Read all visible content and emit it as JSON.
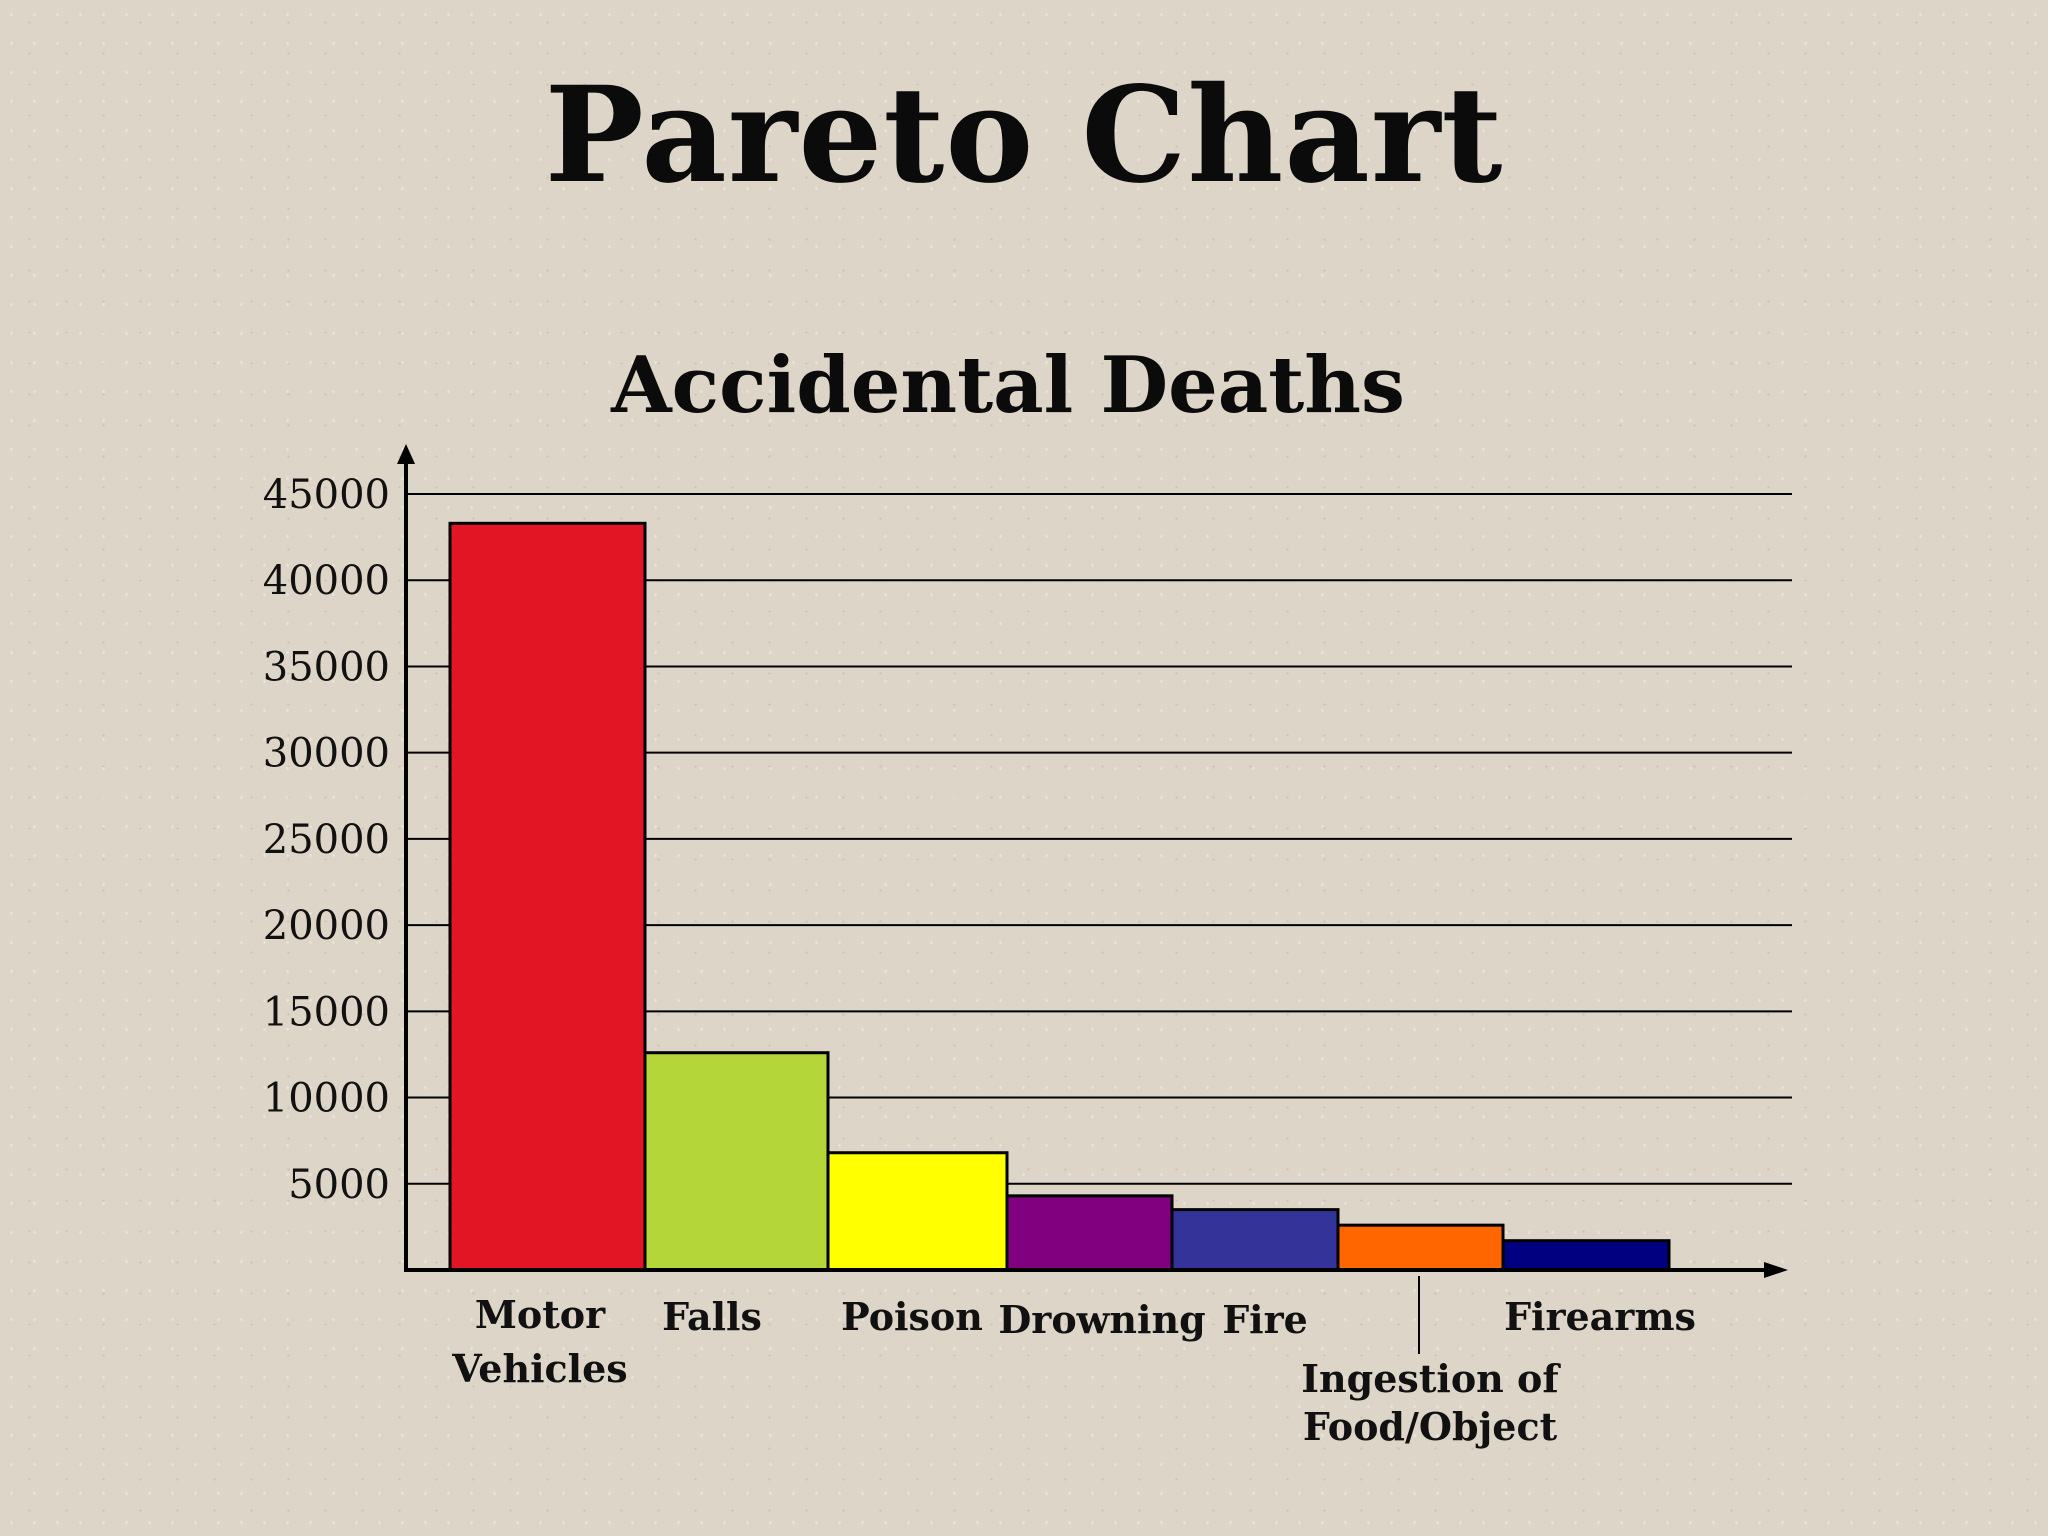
{
  "page": {
    "title": "Pareto Chart"
  },
  "chart_data": {
    "type": "bar",
    "title": "Accidental Deaths",
    "xlabel": "",
    "ylabel": "",
    "categories": [
      [
        "Motor",
        "Vehicles"
      ],
      [
        "Falls"
      ],
      [
        "Poison"
      ],
      [
        "Drowning"
      ],
      [
        "Fire"
      ],
      [
        "Ingestion of",
        "Food/Object"
      ],
      [
        "Firearms"
      ]
    ],
    "values": [
      43300,
      12600,
      6800,
      4300,
      3500,
      2600,
      1700
    ],
    "colors": [
      "#e11524",
      "#b5d638",
      "#ffff00",
      "#800080",
      "#333399",
      "#ff6600",
      "#000080"
    ],
    "yticks": [
      5000,
      10000,
      15000,
      20000,
      25000,
      30000,
      35000,
      40000,
      45000
    ],
    "ylim": [
      0,
      45000
    ],
    "grid": true,
    "legend": "none"
  }
}
